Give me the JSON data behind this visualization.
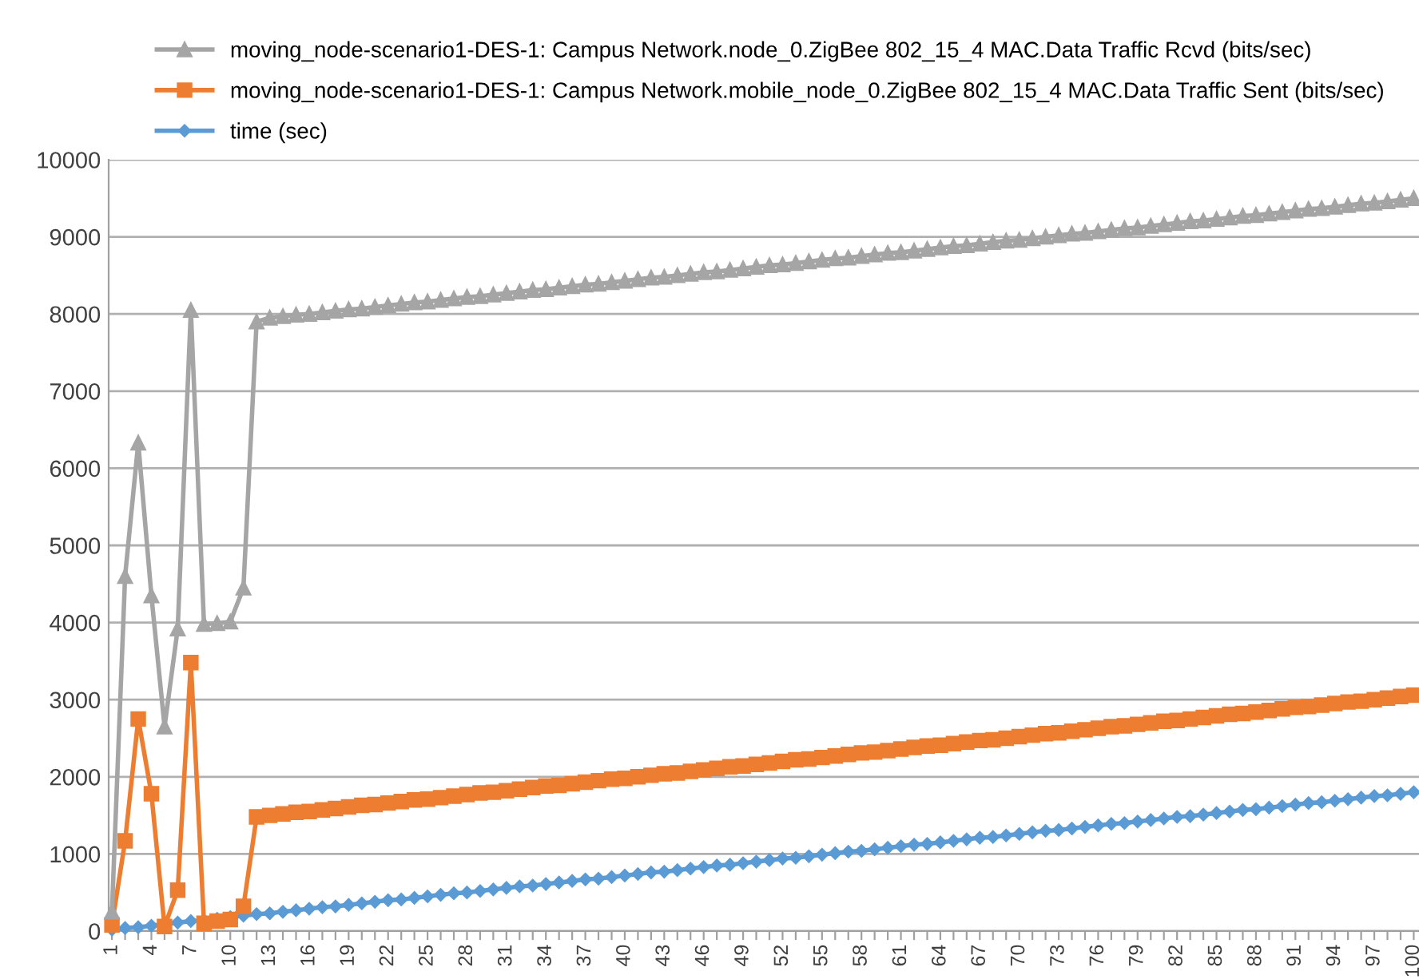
{
  "chart_data": {
    "type": "line",
    "categories": [
      "1",
      null,
      null,
      "4",
      null,
      null,
      "7",
      null,
      null,
      "10",
      null,
      null,
      "13",
      null,
      null,
      "16",
      null,
      null,
      "19",
      null,
      null,
      "22",
      null,
      null,
      "25",
      null,
      null,
      "28",
      null,
      null,
      "31",
      null,
      null,
      "34",
      null,
      null,
      "37",
      null,
      null,
      "40",
      null,
      null,
      "43",
      null,
      null,
      "46",
      null,
      null,
      "49",
      null,
      null,
      "52",
      null,
      null,
      "55",
      null,
      null,
      "58",
      null,
      null,
      "61",
      null,
      null,
      "64",
      null,
      null,
      "67",
      null,
      null,
      "70",
      null,
      null,
      "73",
      null,
      null,
      "76",
      null,
      null,
      "79",
      null,
      null,
      "82",
      null,
      null,
      "85",
      null,
      null,
      "88",
      null,
      null,
      "91",
      null,
      null,
      "94",
      null,
      null,
      "97",
      null,
      null,
      "100"
    ],
    "series": [
      {
        "name": "moving_node-scenario1-DES-1: Campus Network.node_0.ZigBee 802_15_4 MAC.Data Traffic Rcvd (bits/sec)",
        "color": "#a5a5a5",
        "marker": "triangle",
        "values": [
          250,
          4600,
          6330,
          4350,
          2650,
          3920,
          8050,
          3980,
          3990,
          4010,
          4450,
          7900,
          7950,
          7970,
          7990,
          8000,
          8020,
          8040,
          8060,
          8070,
          8090,
          8110,
          8130,
          8150,
          8160,
          8180,
          8200,
          8220,
          8230,
          8250,
          8270,
          8290,
          8310,
          8320,
          8340,
          8360,
          8380,
          8390,
          8410,
          8430,
          8450,
          8470,
          8480,
          8500,
          8520,
          8540,
          8550,
          8570,
          8590,
          8610,
          8630,
          8640,
          8660,
          8680,
          8700,
          8720,
          8730,
          8750,
          8770,
          8790,
          8800,
          8820,
          8840,
          8860,
          8880,
          8890,
          8910,
          8930,
          8950,
          8960,
          8980,
          9000,
          9020,
          9040,
          9050,
          9070,
          9090,
          9110,
          9120,
          9140,
          9160,
          9180,
          9200,
          9210,
          9230,
          9250,
          9270,
          9280,
          9300,
          9320,
          9340,
          9360,
          9370,
          9390,
          9410,
          9430,
          9440,
          9460,
          9480,
          9500
        ]
      },
      {
        "name": "moving_node-scenario1-DES-1: Campus Network.mobile_node_0.ZigBee 802_15_4 MAC.Data Traffic Sent (bits/sec)",
        "color": "#ed7d31",
        "marker": "square",
        "values": [
          80,
          1170,
          2750,
          1780,
          60,
          530,
          3480,
          100,
          130,
          150,
          320,
          1480,
          1500,
          1520,
          1540,
          1550,
          1570,
          1590,
          1610,
          1630,
          1640,
          1660,
          1680,
          1700,
          1710,
          1730,
          1750,
          1770,
          1790,
          1800,
          1820,
          1840,
          1860,
          1880,
          1890,
          1910,
          1930,
          1950,
          1970,
          1980,
          2000,
          2020,
          2040,
          2050,
          2070,
          2090,
          2110,
          2130,
          2140,
          2160,
          2180,
          2200,
          2220,
          2230,
          2250,
          2270,
          2290,
          2310,
          2320,
          2340,
          2360,
          2380,
          2400,
          2410,
          2430,
          2450,
          2470,
          2480,
          2500,
          2520,
          2540,
          2560,
          2570,
          2590,
          2610,
          2630,
          2650,
          2660,
          2680,
          2700,
          2720,
          2730,
          2750,
          2770,
          2790,
          2810,
          2820,
          2840,
          2860,
          2880,
          2900,
          2910,
          2930,
          2950,
          2970,
          2980,
          3000,
          3020,
          3040,
          3060
        ]
      },
      {
        "name": "time (sec)",
        "color": "#5b9bd5",
        "marker": "diamond",
        "values": [
          20,
          40,
          50,
          70,
          90,
          110,
          130,
          140,
          160,
          180,
          200,
          220,
          230,
          250,
          270,
          290,
          310,
          320,
          340,
          360,
          380,
          400,
          410,
          430,
          450,
          470,
          490,
          500,
          520,
          540,
          560,
          580,
          590,
          610,
          630,
          650,
          670,
          680,
          700,
          720,
          740,
          760,
          770,
          790,
          810,
          830,
          850,
          860,
          880,
          900,
          920,
          940,
          950,
          970,
          990,
          1010,
          1030,
          1040,
          1060,
          1080,
          1100,
          1120,
          1130,
          1150,
          1170,
          1190,
          1210,
          1220,
          1240,
          1260,
          1280,
          1300,
          1310,
          1330,
          1350,
          1370,
          1390,
          1400,
          1420,
          1440,
          1460,
          1480,
          1490,
          1510,
          1530,
          1550,
          1570,
          1580,
          1600,
          1620,
          1640,
          1660,
          1670,
          1690,
          1710,
          1730,
          1750,
          1760,
          1780,
          1800
        ]
      }
    ],
    "ylim": [
      0,
      10000
    ],
    "yticks": [
      0,
      1000,
      2000,
      3000,
      4000,
      5000,
      6000,
      7000,
      8000,
      9000,
      10000
    ],
    "grid": "y",
    "legend": "top left",
    "line_style": "solid"
  }
}
